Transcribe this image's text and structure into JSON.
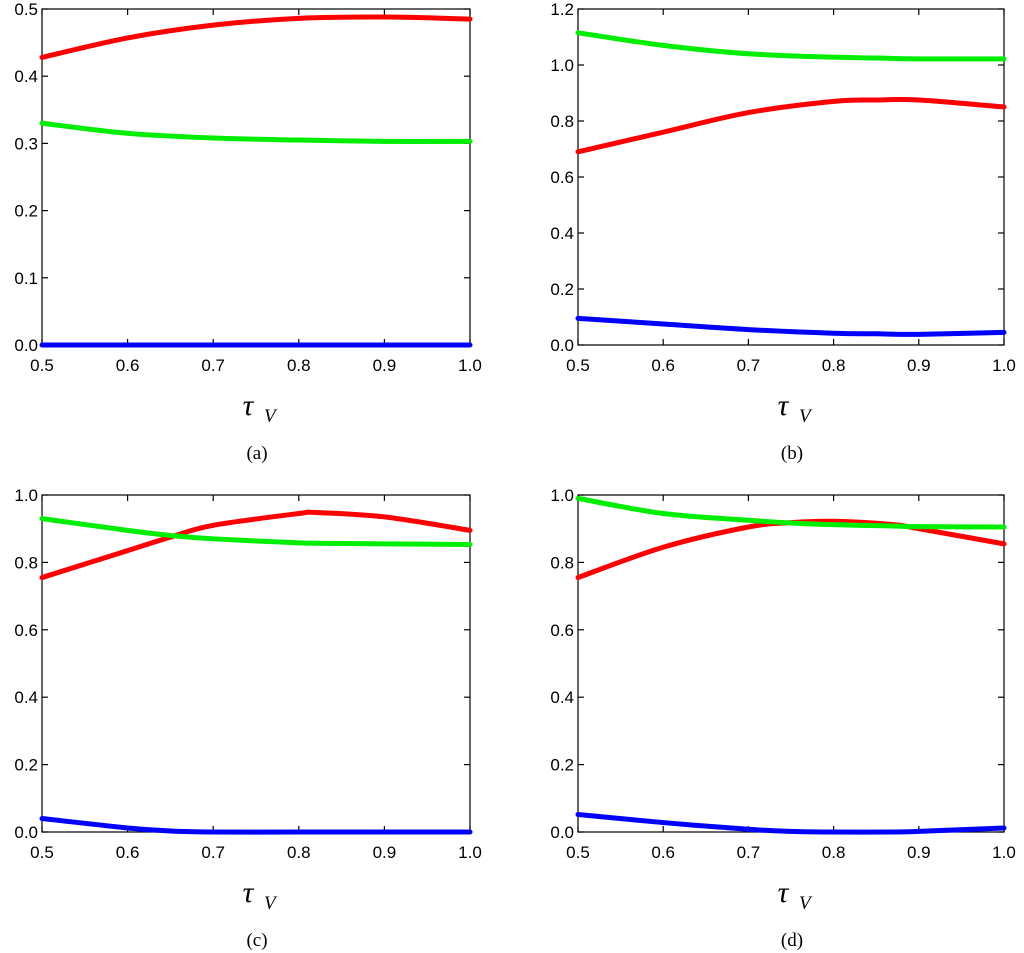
{
  "chart_data": [
    {
      "panel_label": "(a)",
      "type": "line",
      "xlabel": "τ",
      "xlabel_sub": "V",
      "ylabel": "",
      "xlim": [
        0.5,
        1.0
      ],
      "ylim": [
        0.0,
        0.5
      ],
      "xticks": [
        "0.5",
        "0.6",
        "0.7",
        "0.8",
        "0.9",
        "1.0"
      ],
      "yticks": [
        "0.0",
        "0.1",
        "0.2",
        "0.3",
        "0.4",
        "0.5"
      ],
      "x": [
        0.5,
        0.6,
        0.7,
        0.8,
        0.9,
        1.0
      ],
      "series": [
        {
          "color": "#ff0000",
          "values": [
            0.428,
            0.457,
            0.476,
            0.486,
            0.488,
            0.485
          ]
        },
        {
          "color": "#00ee00",
          "values": [
            0.33,
            0.315,
            0.308,
            0.305,
            0.303,
            0.303
          ]
        },
        {
          "color": "#0000ff",
          "values": [
            0.0,
            0.0,
            0.0,
            0.0,
            0.0,
            0.0
          ]
        }
      ]
    },
    {
      "panel_label": "(b)",
      "type": "line",
      "xlabel": "τ",
      "xlabel_sub": "V",
      "ylabel": "",
      "xlim": [
        0.5,
        1.0
      ],
      "ylim": [
        0.0,
        1.2
      ],
      "xticks": [
        "0.5",
        "0.6",
        "0.7",
        "0.8",
        "0.9",
        "1.0"
      ],
      "yticks": [
        "0.0",
        "0.2",
        "0.4",
        "0.6",
        "0.8",
        "1.0",
        "1.2"
      ],
      "x": [
        0.5,
        0.6,
        0.7,
        0.8,
        0.85,
        0.9,
        1.0
      ],
      "series": [
        {
          "color": "#ff0000",
          "values": [
            0.69,
            0.76,
            0.83,
            0.87,
            0.875,
            0.875,
            0.85
          ]
        },
        {
          "color": "#00ee00",
          "values": [
            1.115,
            1.07,
            1.04,
            1.028,
            1.025,
            1.022,
            1.022
          ]
        },
        {
          "color": "#0000ff",
          "values": [
            0.095,
            0.075,
            0.055,
            0.042,
            0.04,
            0.038,
            0.045
          ]
        }
      ]
    },
    {
      "panel_label": "(c)",
      "type": "line",
      "xlabel": "τ",
      "xlabel_sub": "V",
      "ylabel": "",
      "xlim": [
        0.5,
        1.0
      ],
      "ylim": [
        0.0,
        1.0
      ],
      "xticks": [
        "0.5",
        "0.6",
        "0.7",
        "0.8",
        "0.9",
        "1.0"
      ],
      "yticks": [
        "0.0",
        "0.2",
        "0.4",
        "0.6",
        "0.8",
        "1.0"
      ],
      "x": [
        0.5,
        0.6,
        0.65,
        0.7,
        0.8,
        0.82,
        0.9,
        1.0
      ],
      "series": [
        {
          "color": "#ff0000",
          "values": [
            0.755,
            0.835,
            0.875,
            0.91,
            0.945,
            0.948,
            0.935,
            0.895
          ]
        },
        {
          "color": "#00ee00",
          "values": [
            0.93,
            0.895,
            0.88,
            0.87,
            0.858,
            0.857,
            0.855,
            0.853
          ]
        },
        {
          "color": "#0000ff",
          "values": [
            0.04,
            0.012,
            0.003,
            0.0,
            0.0,
            0.0,
            0.0,
            0.0
          ]
        }
      ]
    },
    {
      "panel_label": "(d)",
      "type": "line",
      "xlabel": "τ",
      "xlabel_sub": "V",
      "ylabel": "",
      "xlim": [
        0.5,
        1.0
      ],
      "ylim": [
        0.0,
        1.0
      ],
      "xticks": [
        "0.5",
        "0.6",
        "0.7",
        "0.8",
        "0.9",
        "1.0"
      ],
      "yticks": [
        "0.0",
        "0.2",
        "0.4",
        "0.6",
        "0.8",
        "1.0"
      ],
      "x": [
        0.5,
        0.6,
        0.7,
        0.75,
        0.8,
        0.87,
        0.9,
        1.0
      ],
      "series": [
        {
          "color": "#ff0000",
          "values": [
            0.755,
            0.845,
            0.905,
            0.918,
            0.922,
            0.912,
            0.9,
            0.855
          ]
        },
        {
          "color": "#00ee00",
          "values": [
            0.99,
            0.945,
            0.925,
            0.917,
            0.912,
            0.908,
            0.906,
            0.905
          ]
        },
        {
          "color": "#0000ff",
          "values": [
            0.052,
            0.028,
            0.008,
            0.002,
            0.0,
            0.0,
            0.002,
            0.012
          ]
        }
      ]
    }
  ]
}
